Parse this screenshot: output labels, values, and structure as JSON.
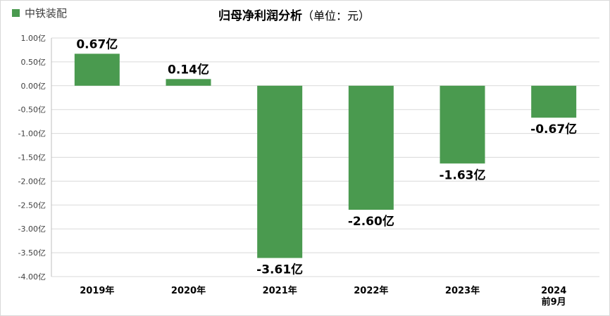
{
  "chart_data": {
    "type": "bar",
    "title": "归母净利润分析",
    "subtitle": "（单位：元）",
    "legend_position": "top-left",
    "grid": true,
    "series": [
      {
        "name": "中铁装配",
        "color": "#4a9a4f",
        "values": [
          0.67,
          0.14,
          -3.61,
          -2.6,
          -1.63,
          -0.67
        ],
        "data_labels": [
          "0.67亿",
          "0.14亿",
          "-3.61亿",
          "-2.60亿",
          "-1.63亿",
          "-0.67亿"
        ]
      }
    ],
    "categories": [
      [
        "2019年"
      ],
      [
        "2020年"
      ],
      [
        "2021年"
      ],
      [
        "2022年"
      ],
      [
        "2023年"
      ],
      [
        "2024",
        "前9月"
      ]
    ],
    "ylim": [
      -4.0,
      1.0
    ],
    "y_ticks": [
      {
        "value": 1.0,
        "label": "1.00亿"
      },
      {
        "value": 0.5,
        "label": "0.50亿"
      },
      {
        "value": 0.0,
        "label": "0.00亿"
      },
      {
        "value": -0.5,
        "label": "-0.50亿"
      },
      {
        "value": -1.0,
        "label": "-1.00亿"
      },
      {
        "value": -1.5,
        "label": "-1.50亿"
      },
      {
        "value": -2.0,
        "label": "-2.00亿"
      },
      {
        "value": -2.5,
        "label": "-2.50亿"
      },
      {
        "value": -3.0,
        "label": "-3.00亿"
      },
      {
        "value": -3.5,
        "label": "-3.50亿"
      },
      {
        "value": -4.0,
        "label": "-4.00亿"
      }
    ]
  }
}
